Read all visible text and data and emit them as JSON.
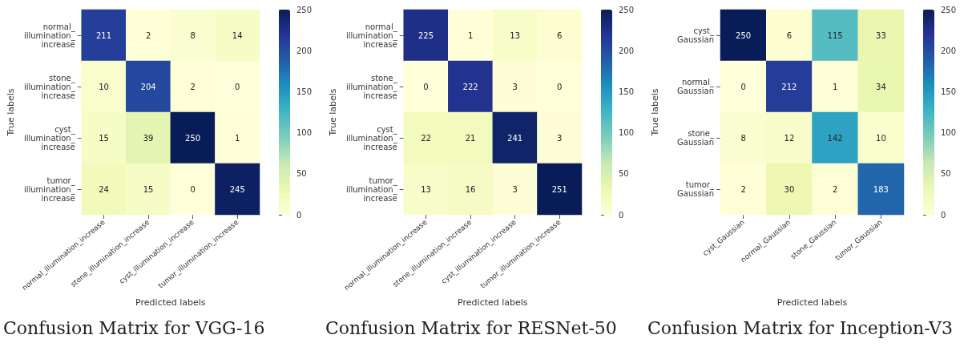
{
  "chart_data": [
    {
      "type": "heatmap",
      "title": "Confusion Matrix for VGG-16",
      "xlabel": "Predicted labels",
      "ylabel": "True labels",
      "categories": [
        "normal_illumination_increase",
        "stone_illumination_increase",
        "cyst_illumination_increase",
        "tumor_illumination_increase"
      ],
      "y_categories": [
        "normal_illumination_increase",
        "stone_illumination_increase",
        "cyst_illumination_increase",
        "tumor_illumination_increase"
      ],
      "cells": [
        [
          211,
          2,
          8,
          14
        ],
        [
          10,
          204,
          2,
          0
        ],
        [
          15,
          39,
          250,
          1
        ],
        [
          24,
          15,
          0,
          245
        ]
      ],
      "clim": [
        0,
        250
      ],
      "cticks": [
        0,
        50,
        100,
        150,
        200,
        250
      ],
      "data_labels": true
    },
    {
      "type": "heatmap",
      "title": "Confusion Matrix for RESNet-50",
      "xlabel": "Predicted labels",
      "ylabel": "True labels",
      "categories": [
        "normal_illumination_increase",
        "stone_illumination_increase",
        "cyst_illumination_increase",
        "tumor_illumination_increase"
      ],
      "y_categories": [
        "normal_illumination_increase",
        "stone_illumination_increase",
        "cyst_illumination_increase",
        "tumor_illumination_increase"
      ],
      "cells": [
        [
          225,
          1,
          13,
          6
        ],
        [
          0,
          222,
          3,
          0
        ],
        [
          22,
          21,
          241,
          3
        ],
        [
          13,
          16,
          3,
          251
        ]
      ],
      "clim": [
        0,
        250
      ],
      "cticks": [
        0,
        50,
        100,
        150,
        200,
        250
      ],
      "data_labels": true
    },
    {
      "type": "heatmap",
      "title": "Confusion Matrix for Inception-V3",
      "xlabel": "Predicted labels",
      "ylabel": "True labels",
      "categories": [
        "cyst_Gaussian",
        "normal_Gaussian",
        "stone_Gaussian",
        "tumor_Gaussian"
      ],
      "y_categories": [
        "cyst_Gaussian",
        "normal_Gaussian",
        "stone_Gaussian",
        "tumor_Gaussian"
      ],
      "cells": [
        [
          250,
          6,
          115,
          33
        ],
        [
          0,
          212,
          1,
          34
        ],
        [
          8,
          12,
          142,
          10
        ],
        [
          2,
          30,
          2,
          183
        ]
      ],
      "clim": [
        0,
        250
      ],
      "cticks": [
        0,
        50,
        100,
        150,
        200,
        250
      ],
      "data_labels": true
    }
  ]
}
